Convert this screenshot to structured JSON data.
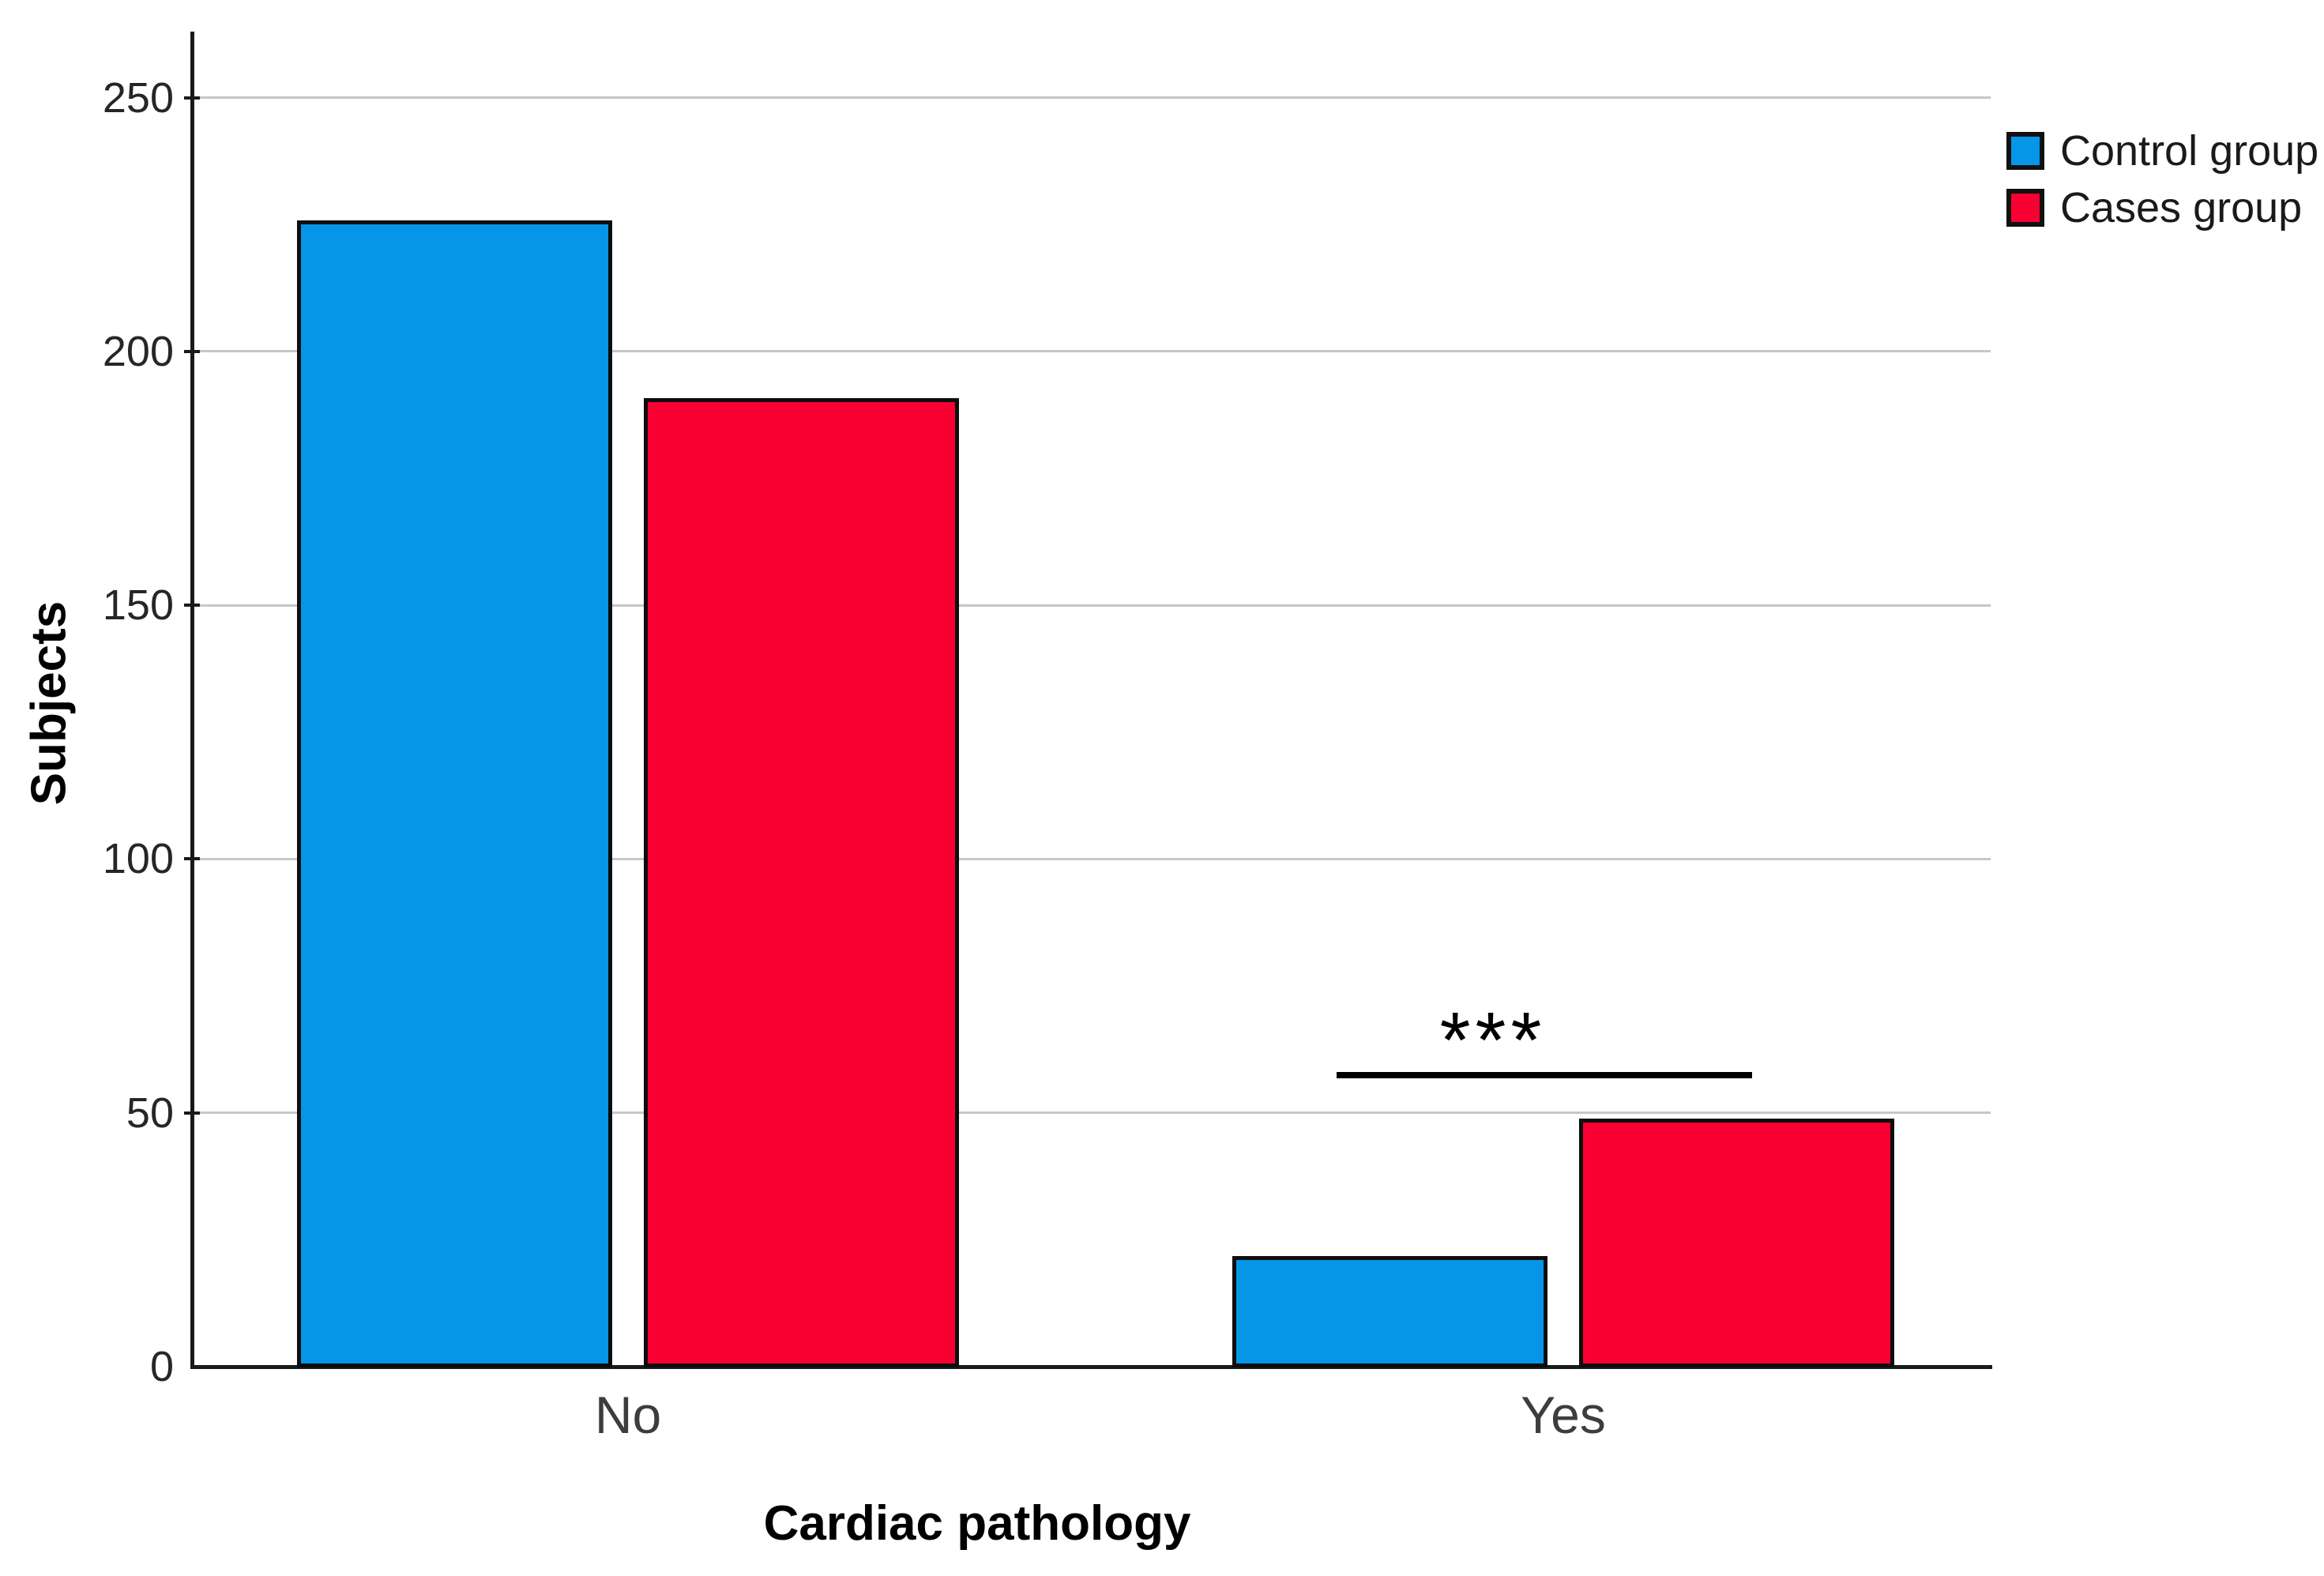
{
  "chart_data": {
    "type": "bar",
    "title": "",
    "xlabel": "Cardiac pathology",
    "ylabel": "Subjects",
    "categories": [
      "No",
      "Yes"
    ],
    "series": [
      {
        "name": "Control group",
        "color": "#0696E8",
        "values": [
          226,
          22
        ]
      },
      {
        "name": "Cases group",
        "color": "#F90032",
        "values": [
          191,
          49
        ]
      }
    ],
    "yticks": [
      0,
      50,
      100,
      150,
      200,
      250
    ],
    "ylim": [
      0,
      263
    ],
    "grid": true,
    "legend_position": "top-right",
    "annotation": {
      "text": "***",
      "target_category": "Yes",
      "line_y_value": 58
    }
  },
  "colors": {
    "background": "#ffffff",
    "axis": "#1a1a1a",
    "gridline": "#c7c7c7",
    "bar_border": "#0d0d0d"
  }
}
